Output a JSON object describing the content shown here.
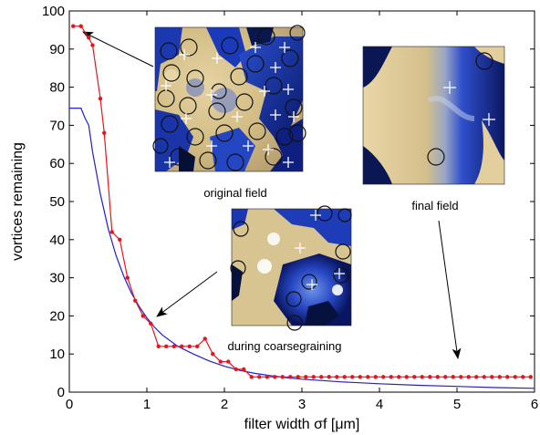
{
  "chart_data": {
    "type": "line",
    "xlabel": "filter width σf [μm]",
    "ylabel": "vortices remaining",
    "xlim": [
      0,
      6
    ],
    "ylim": [
      0,
      100
    ],
    "xticks": [
      "0",
      "1",
      "2",
      "3",
      "4",
      "5",
      "6"
    ],
    "yticks": [
      "0",
      "10",
      "20",
      "30",
      "40",
      "50",
      "60",
      "70",
      "80",
      "90",
      "100"
    ],
    "grid": false,
    "series": [
      {
        "color": "#e8141c",
        "marker": "dot",
        "x": [
          0.05,
          0.15,
          0.25,
          0.3,
          0.4,
          0.45,
          0.55,
          0.65,
          0.75,
          0.85,
          0.95,
          1.05,
          1.15,
          1.25,
          1.35,
          1.45,
          1.55,
          1.65,
          1.75,
          1.85,
          1.95,
          2.05,
          2.15,
          2.25,
          2.35,
          2.45,
          2.55,
          2.65,
          2.75,
          2.85,
          2.95,
          3.05,
          3.15,
          3.25,
          3.35,
          3.45,
          3.55,
          3.65,
          3.75,
          3.85,
          3.95,
          4.05,
          4.15,
          4.25,
          4.35,
          4.45,
          4.55,
          4.65,
          4.75,
          4.85,
          4.95,
          5.05,
          5.15,
          5.25,
          5.35,
          5.45,
          5.55,
          5.65,
          5.75,
          5.85,
          5.95
        ],
        "y": [
          96,
          96,
          93,
          91,
          77,
          68,
          42,
          40,
          30,
          24,
          20,
          18,
          12,
          12,
          12,
          12,
          12,
          12,
          14,
          10,
          8,
          8,
          6,
          6,
          4,
          4,
          4,
          4,
          4,
          4,
          4,
          4,
          4,
          4,
          4,
          4,
          4,
          4,
          4,
          4,
          4,
          4,
          4,
          4,
          4,
          4,
          4,
          4,
          4,
          4,
          4,
          4,
          4,
          4,
          4,
          4,
          4,
          4,
          4,
          4,
          4
        ]
      },
      {
        "color": "#1f1fd6",
        "marker": "none",
        "x": [
          0,
          0.15,
          0.2,
          0.25,
          0.3,
          0.4,
          0.5,
          0.6,
          0.7,
          0.8,
          0.9,
          1.0,
          1.1,
          1.2,
          1.4,
          1.6,
          1.8,
          2.0,
          2.2,
          2.4,
          2.6,
          2.8,
          3.0,
          3.5,
          4.0,
          4.5,
          5.0,
          5.5,
          6.0
        ],
        "y": [
          74.5,
          74.5,
          72,
          70,
          63,
          52,
          43,
          36,
          30.5,
          26,
          22.5,
          19.5,
          17,
          15,
          12,
          10,
          8.2,
          6.8,
          5.7,
          4.9,
          4.3,
          3.8,
          3.4,
          2.7,
          2.2,
          1.8,
          1.5,
          1.2,
          1.0
        ]
      }
    ],
    "annotations": [
      {
        "text": "original field"
      },
      {
        "text": "final field"
      },
      {
        "text": "during coarsegraining"
      }
    ]
  }
}
